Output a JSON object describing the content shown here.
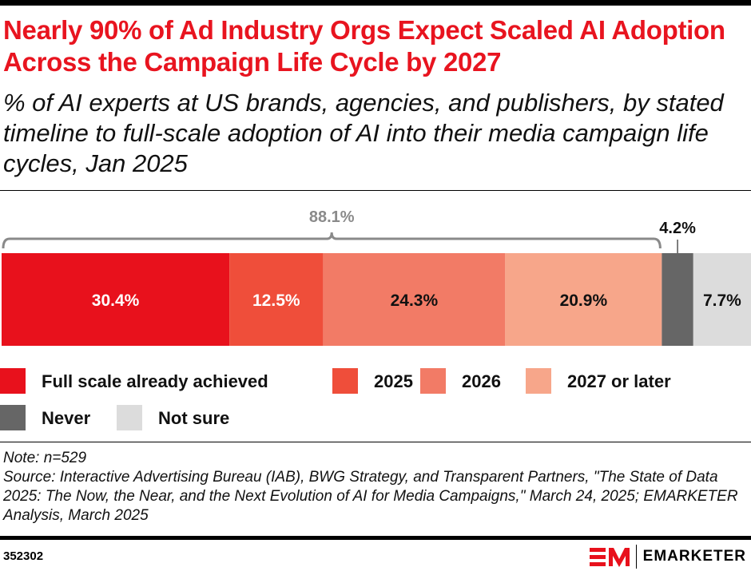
{
  "header": {
    "title": "Nearly 90% of Ad Industry Orgs Expect Scaled AI Adoption Across the Campaign Life Cycle by 2027",
    "subtitle": "% of AI experts at US brands, agencies, and publishers, by stated timeline to full-scale adoption of AI into their media campaign life cycles, Jan 2025"
  },
  "chart_data": {
    "type": "bar",
    "orientation": "horizontal-stacked",
    "categories": [
      "Full scale already achieved",
      "2025",
      "2026",
      "2027 or later",
      "Never",
      "Not sure"
    ],
    "values": [
      30.4,
      12.5,
      24.3,
      20.9,
      4.2,
      7.7
    ],
    "data_labels": [
      "30.4%",
      "12.5%",
      "24.3%",
      "20.9%",
      "4.2%",
      "7.7%"
    ],
    "colors": [
      "#e8111c",
      "#ef4e3a",
      "#f27b66",
      "#f7a68a",
      "#666666",
      "#dcdcdc"
    ],
    "label_colors": [
      "#ffffff",
      "#ffffff",
      "#111111",
      "#111111",
      "#111111",
      "#111111"
    ],
    "bracket_label": "88.1%",
    "bracket_color": "#8a8a8a",
    "legend": [
      "Full scale already achieved",
      "2025",
      "2026",
      "2027 or later",
      "Never",
      "Not sure"
    ],
    "legend_position": "bottom",
    "xlim": [
      0,
      100
    ],
    "grid": false
  },
  "footer": {
    "note": "Note: n=529",
    "source": "Source: Interactive Advertising Bureau (IAB), BWG Strategy, and Transparent Partners, \"The State of Data 2025: The Now, the Near, and the Next Evolution of AI for Media Campaigns,\" March 24, 2025; EMARKETER Analysis, March 2025",
    "chart_id": "352302",
    "brand": "EMARKETER"
  }
}
